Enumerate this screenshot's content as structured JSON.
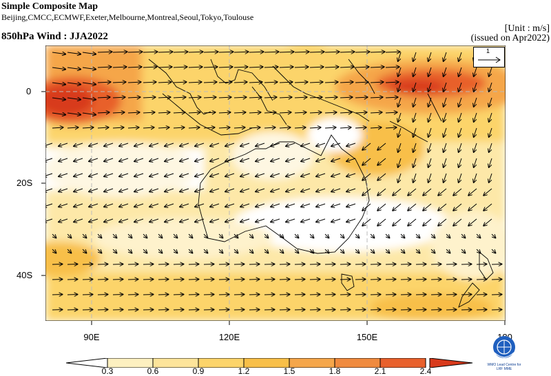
{
  "header": {
    "title": "Simple Composite Map",
    "sources": "Beijing,CMCC,ECMWF,Exeter,Melbourne,Montreal,Seoul,Tokyo,Toulouse",
    "subtitle": "850hPa Wind : JJA2022",
    "unit": "[Unit : m/s]",
    "issued": "(issued on Apr2022)"
  },
  "map": {
    "lat_labels": [
      "0",
      "20S",
      "40S"
    ],
    "lon_labels": [
      "90E",
      "120E",
      "150E",
      "180"
    ],
    "reference_vector": "1",
    "reference_arrow_icon": "reference-arrow-icon"
  },
  "colorbar": {
    "levels": [
      "0.3",
      "0.6",
      "0.9",
      "1.2",
      "1.5",
      "1.8",
      "2.1",
      "2.4"
    ],
    "colors": [
      "#ffffff",
      "#fdf0c0",
      "#fde49a",
      "#fcd46a",
      "#f8bf48",
      "#f5a64a",
      "#f08a3e",
      "#e8602c",
      "#d83a1c"
    ]
  },
  "logo": {
    "icon": "wmo-emblem-icon",
    "line1": "WMO Lead Centre for",
    "line2": "LRF MME"
  }
}
